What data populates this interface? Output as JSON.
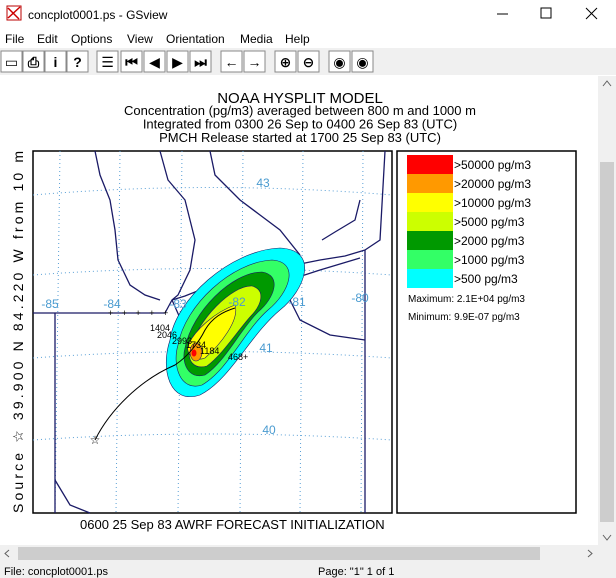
{
  "window": {
    "title": "concplot0001.ps - GSview",
    "menu": [
      "File",
      "Edit",
      "Options",
      "View",
      "Orientation",
      "Media",
      "Help"
    ]
  },
  "plot": {
    "title": "NOAA HYSPLIT MODEL",
    "subtitle_lines": [
      "Concentration  (pg/m3) averaged between   800 m and  1000 m",
      "Integrated from 0300 26 Sep to 0400 26 Sep 83 (UTC)",
      "PMCH Release started at 1700 25 Sep 83 (UTC)"
    ],
    "source_label": "Source ☆ 39.900 N 84.220 W from 10 m",
    "map_labels": [
      "-85",
      "-84",
      "-83",
      "-82",
      "-81",
      "-80",
      "43",
      "41",
      "40"
    ],
    "station_labels": [
      "1404",
      "2046",
      "2993",
      "1734",
      "1184",
      "468+"
    ],
    "legend": {
      "entries": [
        {
          "label": ">50000 pg/m3",
          "color": "#ff0000"
        },
        {
          "label": ">20000 pg/m3",
          "color": "#ff9900"
        },
        {
          "label": ">10000 pg/m3",
          "color": "#ffff00"
        },
        {
          "label": ">5000 pg/m3",
          "color": "#ccff00"
        },
        {
          "label": ">2000 pg/m3",
          "color": "#009900"
        },
        {
          "label": ">1000 pg/m3",
          "color": "#33ff66"
        },
        {
          "label": ">500 pg/m3",
          "color": "#00ffff"
        }
      ],
      "maximum": "Maximum: 2.1E+04 pg/m3",
      "minimum": "Minimum: 9.9E-07 pg/m3"
    },
    "footer": "0600 25 Sep 83 AWRF FORECAST INITIALIZATION"
  },
  "status": {
    "file": "File: concplot0001.ps",
    "page": "Page: \"1\"  1 of 1"
  }
}
